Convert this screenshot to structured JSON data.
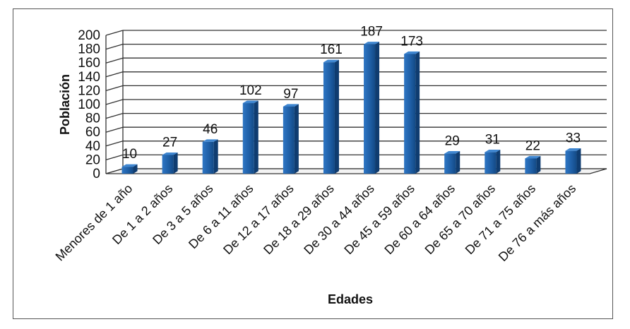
{
  "chart_data": {
    "type": "bar",
    "title": "",
    "xlabel": "Edades",
    "ylabel": "Población",
    "ylim": [
      0,
      200
    ],
    "yticks": [
      0,
      20,
      40,
      60,
      80,
      100,
      120,
      140,
      160,
      180,
      200
    ],
    "grid": true,
    "legend": "none",
    "bar_color": "#1f5fa6",
    "categories": [
      "Menores de 1 año",
      "De 1 a 2 años",
      "De 3 a 5 años",
      "De 6 a 11 años",
      "De 12 a 17 años",
      "De 18 a 29 años",
      "De 30 a 44 años",
      "De 45 a 59 años",
      "De 60 a 64 años",
      "De 65 a 70 años",
      "De 71 a 75 años",
      "De 76 a más años"
    ],
    "values": [
      10,
      27,
      46,
      102,
      97,
      161,
      187,
      173,
      29,
      31,
      22,
      33
    ]
  }
}
